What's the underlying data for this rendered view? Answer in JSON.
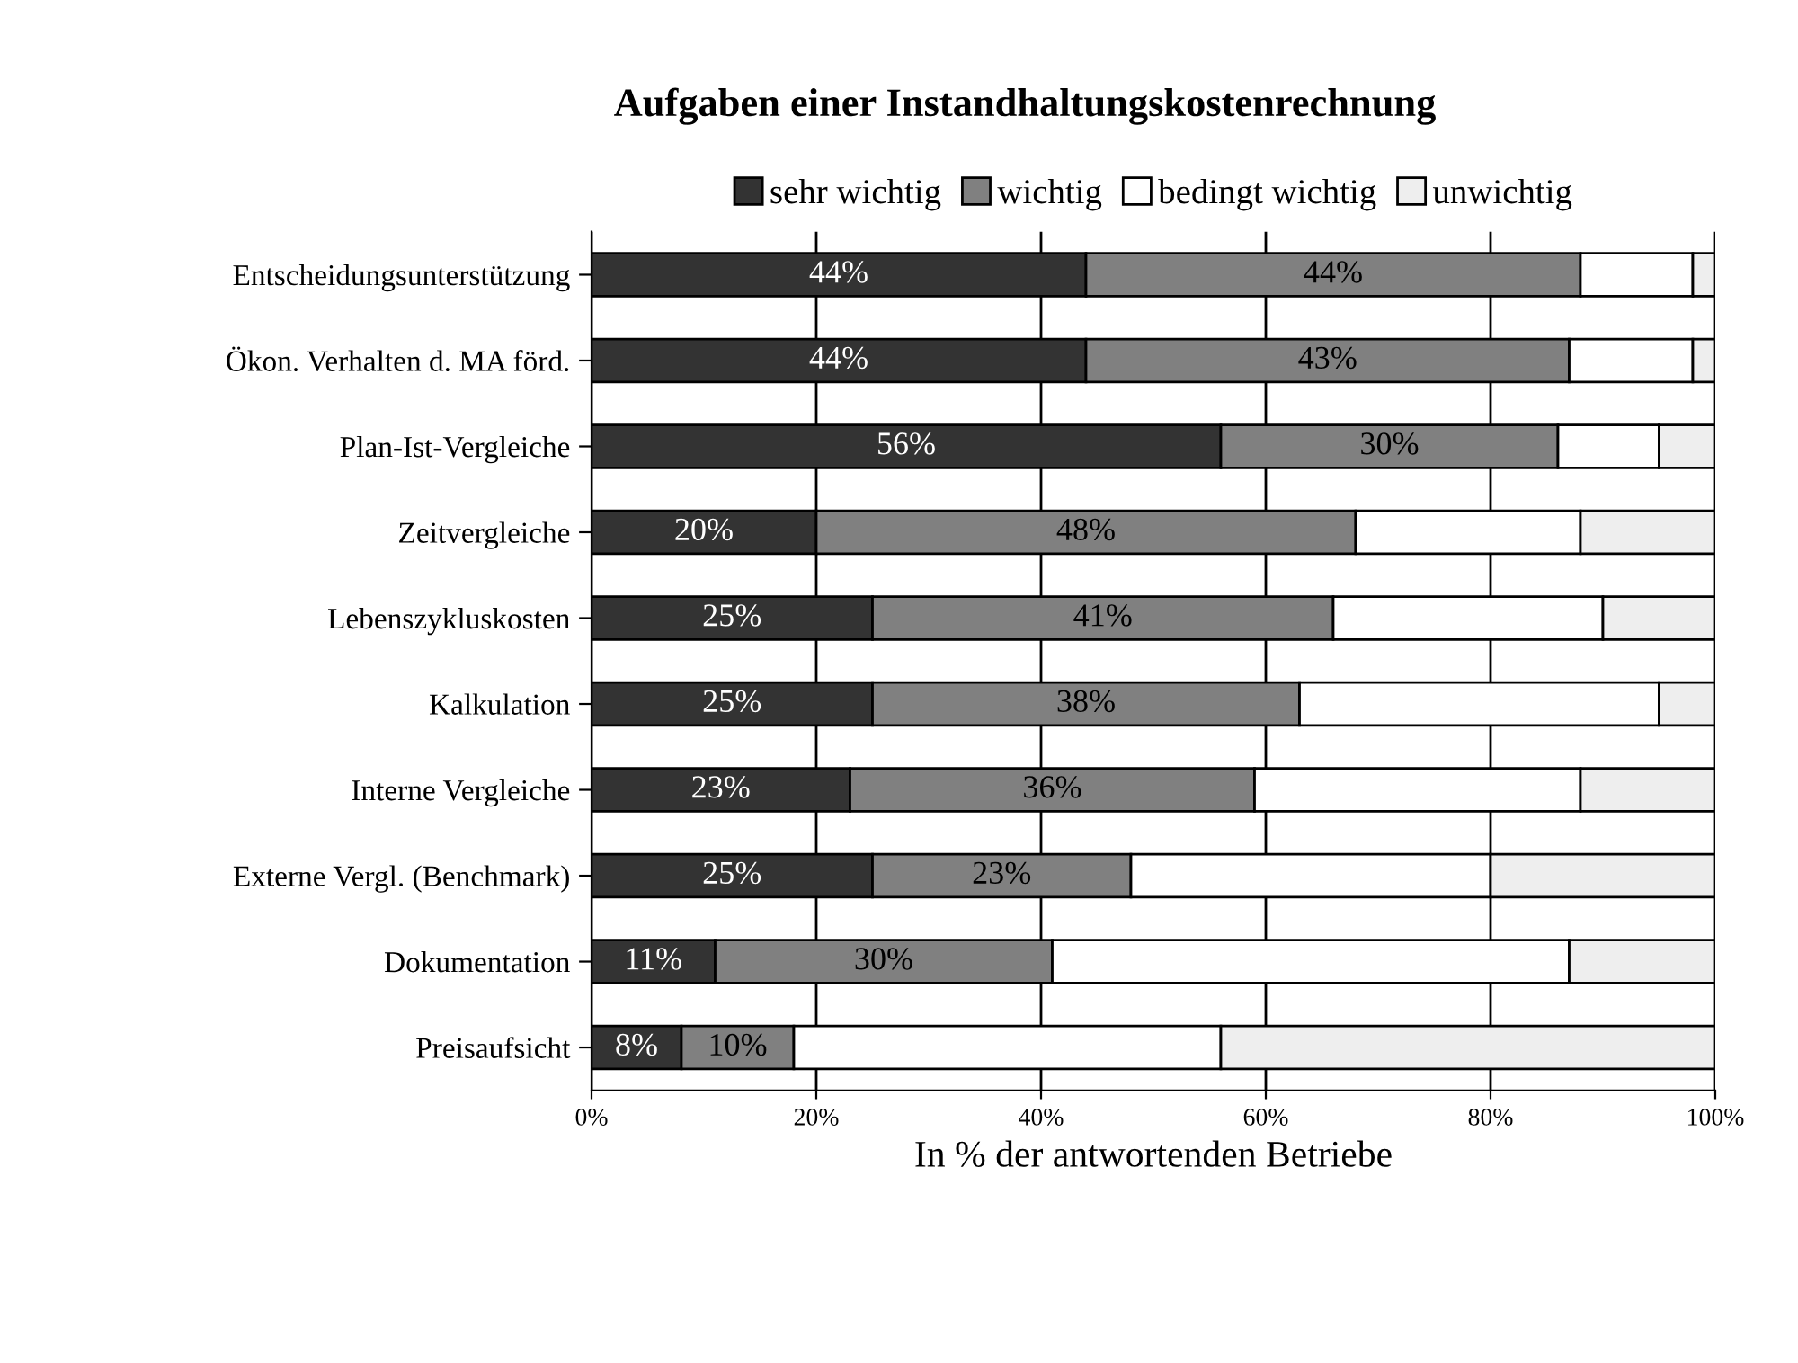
{
  "chart_data": {
    "type": "bar",
    "orientation": "horizontal",
    "stacked": true,
    "title": "Aufgaben einer Instandhaltungskostenrechnung",
    "xlabel": "In % der antwortenden Betriebe",
    "categories": [
      "Entscheidungsunterstützung",
      "Ökon. Verhalten d. MA förd.",
      "Plan-Ist-Vergleiche",
      "Zeitvergleiche",
      "Lebenszykluskosten",
      "Kalkulation",
      "Interne Vergleiche",
      "Externe Vergl. (Benchmark)",
      "Dokumentation",
      "Preisaufsicht"
    ],
    "series": [
      {
        "name": "sehr wichtig",
        "color": "#333333",
        "values": [
          44,
          44,
          56,
          20,
          25,
          25,
          23,
          25,
          11,
          8
        ],
        "value_labels": [
          "44%",
          "44%",
          "56%",
          "20%",
          "25%",
          "25%",
          "23%",
          "25%",
          "11%",
          "8%"
        ]
      },
      {
        "name": "wichtig",
        "color": "#808080",
        "values": [
          44,
          43,
          30,
          48,
          41,
          38,
          36,
          23,
          30,
          10
        ],
        "value_labels": [
          "44%",
          "43%",
          "30%",
          "48%",
          "41%",
          "38%",
          "36%",
          "23%",
          "30%",
          "10%"
        ]
      },
      {
        "name": "bedingt wichtig",
        "color": "#ffffff",
        "values": [
          10,
          11,
          9,
          20,
          24,
          32,
          29,
          32,
          46,
          38
        ]
      },
      {
        "name": "unwichtig",
        "color": "#eeeeee",
        "values": [
          2,
          2,
          5,
          12,
          10,
          5,
          12,
          20,
          13,
          44
        ]
      }
    ],
    "xlim": [
      0,
      100
    ],
    "xticks": [
      {
        "value": 0,
        "label": "0%"
      },
      {
        "value": 20,
        "label": "20%"
      },
      {
        "value": 40,
        "label": "40%"
      },
      {
        "value": 60,
        "label": "60%"
      },
      {
        "value": 80,
        "label": "80%"
      },
      {
        "value": 100,
        "label": "100%"
      }
    ],
    "grid": "x",
    "legend": "top"
  }
}
